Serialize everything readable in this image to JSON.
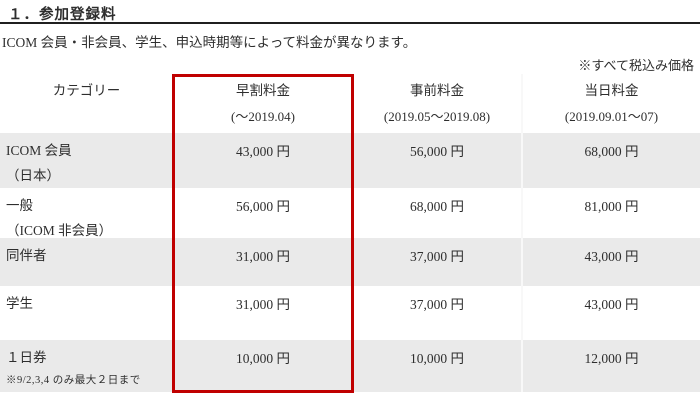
{
  "page": {
    "title": "１．参加登録料",
    "subtitle": "ICOM 会員・非会員、学生、申込時期等によって料金が異なります。",
    "tax_note": "※すべて税込み価格",
    "stripe_color": "#eaeaea",
    "highlight_border_color": "#c00000"
  },
  "table": {
    "headers": [
      {
        "label": "カテゴリー",
        "sublabel": ""
      },
      {
        "label": "早割料金",
        "sublabel": "(～2019.04)"
      },
      {
        "label": "事前料金",
        "sublabel": "(2019.05～2019.08)"
      },
      {
        "label": "当日料金",
        "sublabel": "(2019.09.01～07)"
      }
    ],
    "rows": [
      {
        "category": "ICOM 会員",
        "category_line2": "（日本）",
        "note": "",
        "prices": [
          "43,000 円",
          "56,000 円",
          "68,000 円"
        ]
      },
      {
        "category": "一般",
        "category_line2": "（ICOM 非会員）",
        "note": "",
        "prices": [
          "56,000 円",
          "68,000 円",
          "81,000 円"
        ]
      },
      {
        "category": "同伴者",
        "category_line2": "",
        "note": "",
        "prices": [
          "31,000 円",
          "37,000 円",
          "43,000 円"
        ]
      },
      {
        "category": "学生",
        "category_line2": "",
        "note": "",
        "prices": [
          "31,000 円",
          "37,000 円",
          "43,000 円"
        ]
      },
      {
        "category": "１日券",
        "category_line2": "",
        "note": "※9/2,3,4 のみ最大２日まで",
        "prices": [
          "10,000 円",
          "10,000 円",
          "12,000 円"
        ]
      }
    ]
  }
}
